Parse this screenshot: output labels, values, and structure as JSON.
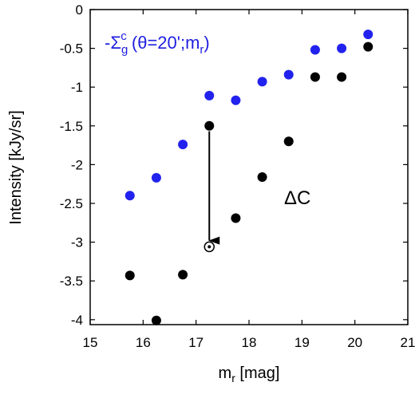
{
  "chart_data": {
    "type": "scatter",
    "xlabel_main": "m",
    "xlabel_sub": "r",
    "xlabel_rest": " [mag]",
    "ylabel": "Intensity [kJy/sr]",
    "xlim": [
      15,
      21
    ],
    "ylim": [
      -4.1,
      0
    ],
    "xticks": [
      15,
      16,
      17,
      18,
      19,
      20,
      21
    ],
    "xtick_labels": [
      "15",
      "16",
      "17",
      "18",
      "19",
      "20",
      "21"
    ],
    "yticks": [
      0,
      -0.5,
      -1,
      -1.5,
      -2,
      -2.5,
      -3,
      -3.5,
      -4
    ],
    "ytick_labels": [
      "0",
      "-0.5",
      "-1",
      "-1.5",
      "-2",
      "-2.5",
      "-3",
      "-3.5",
      "-4"
    ],
    "grid": false,
    "series": [
      {
        "color": "#2222ee",
        "x": [
          15.75,
          16.25,
          16.75,
          17.25,
          17.75,
          18.25,
          18.75,
          19.25,
          19.75,
          20.25
        ],
        "y": [
          -2.4,
          -2.17,
          -1.74,
          -1.11,
          -1.17,
          -0.93,
          -0.84,
          -0.52,
          -0.5,
          -0.32
        ]
      },
      {
        "color": "#000000",
        "x": [
          15.75,
          16.25,
          16.75,
          17.25,
          17.75,
          18.25,
          18.75,
          19.25,
          19.75,
          20.25
        ],
        "y": [
          -3.43,
          -4.01,
          -3.42,
          -1.5,
          -2.69,
          -2.16,
          -1.7,
          -0.87,
          -0.87,
          -0.48
        ]
      }
    ],
    "open_point": {
      "x": 17.25,
      "y": -3.06,
      "color": "#000000"
    },
    "arrow": {
      "x": 17.25,
      "y_from": -1.57,
      "y_to": -2.98
    },
    "annotation_blue": {
      "prefix": "-Σ",
      "sub": "g",
      "sup": "c",
      "middle": " (θ=20';m",
      "sub2": "r",
      "suffix": ")",
      "color": "#1f1fe0"
    },
    "annotation_delta": "ΔC"
  }
}
